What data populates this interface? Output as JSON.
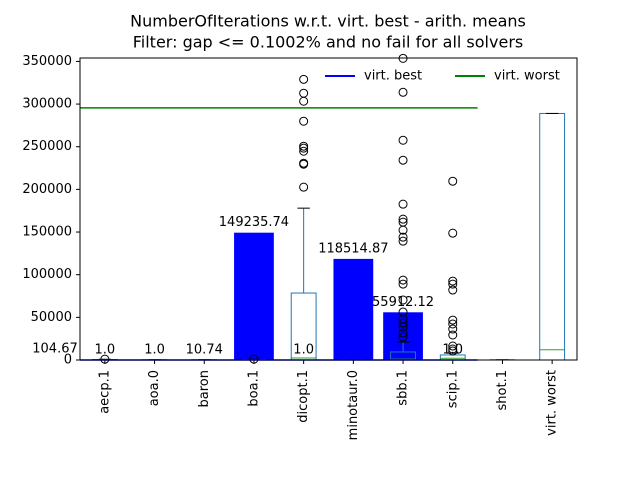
{
  "chart_data": {
    "type": "bar",
    "title": "NumberOfIterations w.r.t. virt. best - arith. means",
    "subtitle": "Filter: gap <= 0.1002% and no fail for all solvers",
    "categories": [
      "aecp.1",
      "aoa.0",
      "baron",
      "boa.1",
      "dicopt.1",
      "minotaur.0",
      "sbb.1",
      "scip.1",
      "shot.1",
      "virt. worst"
    ],
    "values": [
      1,
      1,
      10.74,
      149235.74,
      1,
      118514.87,
      55912.12,
      1,
      null,
      null
    ],
    "value_labels": [
      "1.0",
      "1.0",
      "10.74",
      "149235.74",
      "1.0",
      "118514.87",
      "55912.12",
      "1.0",
      null,
      null
    ],
    "color": "#0000ff",
    "annotations": [
      "104.67"
    ],
    "boxes": [
      {
        "q1": 0,
        "median": 300,
        "q3": 600,
        "high": 900,
        "outliers": [
          1000
        ]
      },
      {
        "q1": 0,
        "median": 100,
        "q3": 200,
        "high": 300,
        "outliers": []
      },
      {
        "q1": 0,
        "median": 100,
        "q3": 200,
        "high": 300,
        "outliers": []
      },
      {
        "q1": 0,
        "median": 300,
        "q3": 600,
        "high": 900,
        "outliers": [
          1000
        ]
      },
      {
        "q1": 0,
        "median": 2300,
        "q3": 78500,
        "high": 178000,
        "outliers": [
          202600,
          229500,
          230700,
          244700,
          248300,
          250600,
          279900,
          303300,
          312700,
          329000
        ]
      },
      {
        "q1": 0,
        "median": 100,
        "q3": 200,
        "high": 300,
        "outliers": []
      },
      {
        "q1": 0,
        "median": 1000,
        "q3": 9400,
        "high": 21000,
        "outliers": [
          26900,
          31600,
          38600,
          43300,
          48000,
          56200,
          70300,
          89000,
          93700,
          139300,
          144000,
          152200,
          161600,
          165100,
          182700,
          234200,
          257600,
          313800,
          353600
        ]
      },
      {
        "q1": 0,
        "median": 2000,
        "q3": 5900,
        "high": 8000,
        "outliers": [
          10500,
          12900,
          16400,
          29300,
          36300,
          42200,
          46800,
          82000,
          89000,
          92500,
          148700,
          209600
        ]
      },
      {
        "q1": 0,
        "median": 100,
        "q3": 200,
        "high": 300,
        "outliers": []
      },
      {
        "q1": 0,
        "median": 12000,
        "q3": 289000,
        "high": 289000,
        "outliers": []
      }
    ],
    "box_color": "#1f77b4",
    "median_color": "#2ca02c",
    "lines": [
      {
        "name": "virt. best",
        "color": "#0000ff",
        "value": 1
      },
      {
        "name": "virt. worst",
        "color": "#008000",
        "value": 295600
      }
    ],
    "ylim": [
      0,
      354000
    ],
    "yticks": [
      0,
      50000,
      100000,
      150000,
      200000,
      250000,
      300000,
      350000
    ],
    "legend": "upper right"
  }
}
